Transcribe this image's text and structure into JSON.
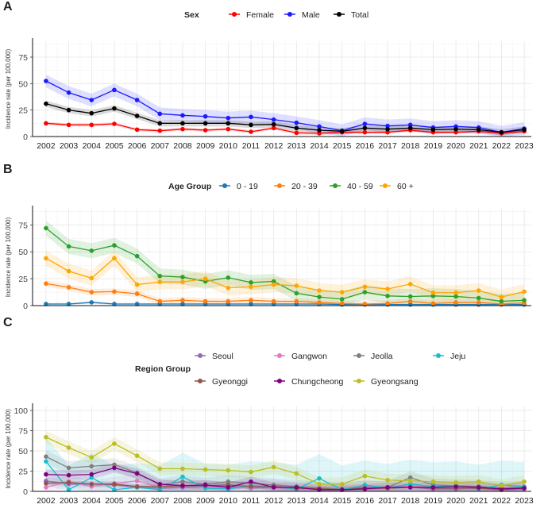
{
  "chart_data": [
    {
      "panel_label": "A",
      "type": "line",
      "legend_title": "Sex",
      "legend_position": "top",
      "ylabel": "Incidence rate (per 100,000)",
      "ylim": [
        0,
        90
      ],
      "yticks": [
        0,
        25,
        50,
        75
      ],
      "categories": [
        "2002",
        "2003",
        "2004",
        "2005",
        "2006",
        "2007",
        "2008",
        "2009",
        "2010",
        "2011",
        "2012",
        "2013",
        "2014",
        "2015",
        "2016",
        "2017",
        "2018",
        "2019",
        "2020",
        "2021",
        "2022",
        "2023"
      ],
      "series": [
        {
          "name": "Female",
          "color": "#ff0000",
          "values": [
            12.5,
            11,
            11,
            12,
            6.5,
            5.5,
            7,
            6,
            7,
            4.5,
            8,
            3.5,
            3,
            4,
            4,
            4,
            6,
            4,
            4,
            5,
            3,
            5
          ],
          "ci_width": 1.5
        },
        {
          "name": "Male",
          "color": "#1a1aff",
          "values": [
            52.5,
            41.5,
            34.5,
            44,
            34.5,
            21.5,
            20,
            19,
            17.5,
            18.5,
            16,
            13,
            9.5,
            5.5,
            12,
            10,
            11,
            8.5,
            9.5,
            8.5,
            4,
            7.5
          ],
          "ci_width": 6
        },
        {
          "name": "Total",
          "color": "#000000",
          "values": [
            31,
            25,
            22,
            26.5,
            19.5,
            12.5,
            12.5,
            12.5,
            12.5,
            11,
            11.5,
            8,
            6,
            5,
            8,
            7,
            8,
            6.5,
            7,
            6.5,
            4,
            6.5
          ],
          "ci_width": 3
        }
      ]
    },
    {
      "panel_label": "B",
      "type": "line",
      "legend_title": "Age Group",
      "legend_position": "top",
      "ylabel": "Incidence rate (per 100,000)",
      "ylim": [
        0,
        90
      ],
      "yticks": [
        0,
        25,
        50,
        75
      ],
      "categories": [
        "2002",
        "2003",
        "2004",
        "2005",
        "2006",
        "2007",
        "2008",
        "2009",
        "2010",
        "2011",
        "2012",
        "2013",
        "2014",
        "2015",
        "2016",
        "2017",
        "2018",
        "2019",
        "2020",
        "2021",
        "2022",
        "2023"
      ],
      "series": [
        {
          "name": "0 - 19",
          "color": "#1f77b4",
          "values": [
            1.5,
            1.5,
            3,
            1.5,
            1.5,
            1.5,
            1.5,
            1.5,
            1.5,
            1.5,
            1.5,
            1.5,
            1.5,
            1,
            1,
            1,
            1,
            1,
            1,
            1,
            1,
            1
          ],
          "ci_width": 1
        },
        {
          "name": "20 - 39",
          "color": "#ff7f0e",
          "values": [
            20.5,
            17,
            12.5,
            13,
            11,
            4,
            5,
            4,
            4,
            5,
            4,
            4,
            3,
            2,
            1.5,
            2,
            4,
            2,
            3,
            3,
            1.5,
            2.5
          ],
          "ci_width": 3
        },
        {
          "name": "40 - 59",
          "color": "#2ca02c",
          "values": [
            72,
            55,
            51,
            56,
            46,
            27.5,
            26.5,
            22.5,
            26,
            21.5,
            22.5,
            11.5,
            8,
            6,
            12.5,
            9,
            8.5,
            9,
            8.5,
            7,
            4,
            5
          ],
          "ci_width": 7
        },
        {
          "name": "60 +",
          "color": "#ffa500",
          "values": [
            44,
            32,
            25.5,
            44,
            19.5,
            22,
            22,
            25,
            16.5,
            17.5,
            19.5,
            18.5,
            14,
            12.5,
            17.5,
            15.5,
            20,
            12,
            12,
            14,
            8,
            13
          ],
          "ci_width": 7
        }
      ]
    },
    {
      "panel_label": "C",
      "type": "line",
      "legend_title": "Region Group",
      "legend_position": "top",
      "ylabel": "Incidence rate (per 100,000)",
      "ylim": [
        0,
        105
      ],
      "yticks": [
        0,
        25,
        50,
        75,
        100
      ],
      "categories": [
        "2002",
        "2003",
        "2004",
        "2005",
        "2006",
        "2007",
        "2008",
        "2009",
        "2010",
        "2011",
        "2012",
        "2013",
        "2014",
        "2015",
        "2016",
        "2017",
        "2018",
        "2019",
        "2020",
        "2021",
        "2022",
        "2023"
      ],
      "series": [
        {
          "name": "Seoul",
          "color": "#9467bd",
          "values": [
            13,
            9,
            9,
            8,
            5,
            4,
            5,
            6,
            6,
            4,
            5,
            3,
            2,
            2,
            3,
            4,
            5,
            3,
            3,
            4,
            2,
            3
          ],
          "ci_width": 4
        },
        {
          "name": "Gangwon",
          "color": "#e377c2",
          "values": [
            5,
            12,
            6,
            10,
            13,
            5,
            8,
            6,
            4,
            5,
            7,
            3,
            2,
            2,
            6,
            4,
            7,
            4,
            4,
            3,
            2,
            4
          ],
          "ci_width": 8
        },
        {
          "name": "Jeolla",
          "color": "#7f7f7f",
          "values": [
            43,
            29,
            31,
            33,
            23,
            8,
            12,
            9,
            12,
            10,
            8,
            6,
            4,
            3,
            5,
            5,
            17,
            8,
            7,
            6,
            4,
            5
          ],
          "ci_width": 8
        },
        {
          "name": "Jeju",
          "color": "#17becf",
          "values": [
            37,
            2,
            17,
            2,
            5,
            2,
            18,
            4,
            3,
            7,
            6,
            3,
            16,
            2,
            8,
            4,
            9,
            6,
            7,
            3,
            8,
            6
          ],
          "ci_width": 30
        },
        {
          "name": "Gyeonggi",
          "color": "#8c564b",
          "values": [
            10,
            11,
            9,
            9,
            6,
            6,
            7,
            7,
            8,
            6,
            6,
            4,
            3,
            2,
            4,
            4,
            5,
            4,
            4,
            4,
            2,
            4
          ],
          "ci_width": 3
        },
        {
          "name": "Chungcheong",
          "color": "#800080",
          "values": [
            21,
            20,
            21,
            29,
            22,
            9,
            7,
            8,
            5,
            12,
            5,
            5,
            2,
            2,
            3,
            5,
            5,
            5,
            6,
            5,
            3,
            4
          ],
          "ci_width": 6
        },
        {
          "name": "Gyeongsang",
          "color": "#bcbd22",
          "values": [
            67,
            54,
            42,
            59,
            44,
            28,
            28,
            27,
            26,
            24,
            30,
            22,
            9,
            9,
            19,
            14,
            13,
            12,
            11,
            12,
            7,
            12
          ],
          "ci_width": 8
        }
      ]
    }
  ]
}
